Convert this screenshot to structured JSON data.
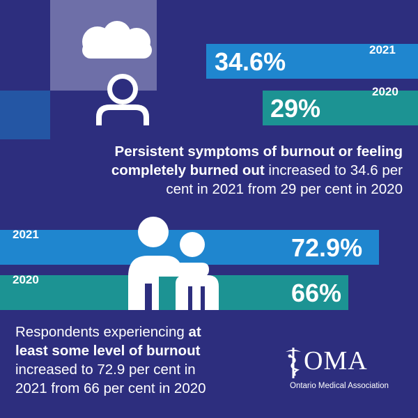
{
  "colors": {
    "background": "#2d2e7e",
    "bar_2021": "#1f86cf",
    "bar_2020": "#1c9393",
    "text": "#ffffff",
    "deco_light": "#6e6fa8",
    "deco_blue": "#2456a4"
  },
  "section1": {
    "bar_2021": {
      "year": "2021",
      "value_label": "34.6%",
      "value": 34.6
    },
    "bar_2020": {
      "year": "2020",
      "value_label": "29%",
      "value": 29
    },
    "caption": {
      "line1": "Persistent symptoms of burnout or feeling",
      "bold": "completely burned out",
      "line2_rest": " increased to 34.6 per",
      "line3": "cent in 2021 from 29 per cent in 2020"
    },
    "icon": "person-under-cloud-icon"
  },
  "section2": {
    "bar_2021": {
      "year": "2021",
      "value_label": "72.9%",
      "value": 72.9
    },
    "bar_2020": {
      "year": "2020",
      "value_label": "66%",
      "value": 66
    },
    "caption": {
      "line1_start": "Respondents experiencing ",
      "line1_bold": "at",
      "line2_bold": "least some level of burnout",
      "line3": "increased to 72.9 per cent in",
      "line4": "2021 from 66 per cent in 2020"
    },
    "icon": "two-people-comforting-icon"
  },
  "logo": {
    "mark": "OMA",
    "subtitle": "Ontario Medical Association",
    "icon": "caduceus-icon"
  }
}
